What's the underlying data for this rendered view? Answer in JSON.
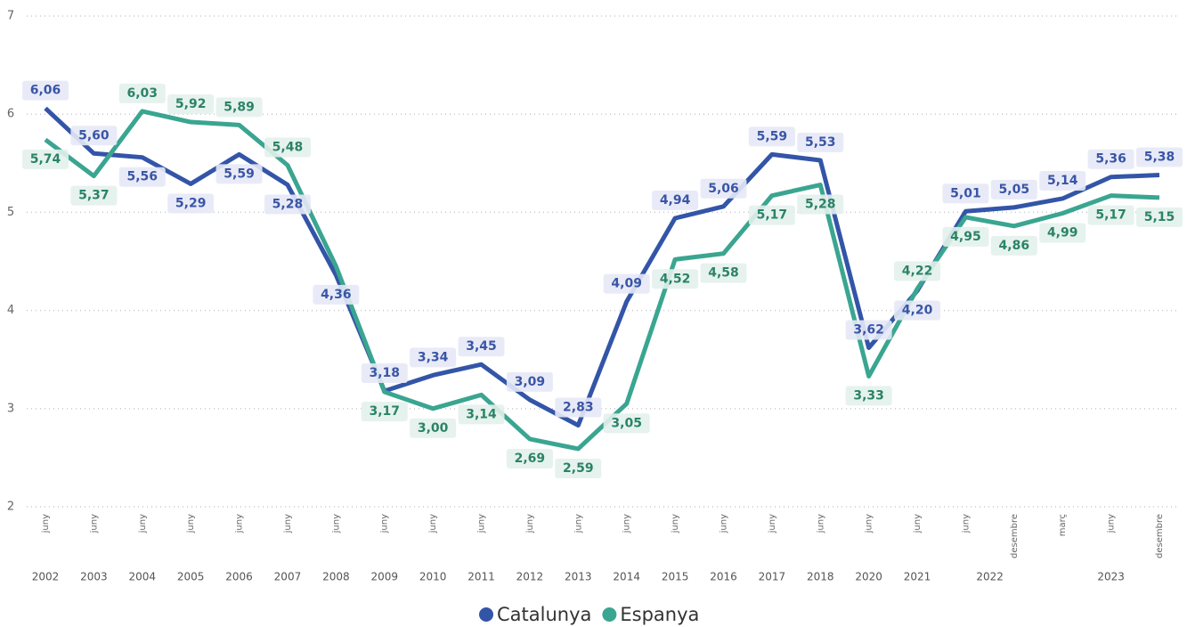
{
  "chart_data": {
    "type": "line",
    "categories": [
      "juny",
      "juny",
      "juny",
      "juny",
      "juny",
      "juny",
      "juny",
      "juny",
      "juny",
      "juny",
      "juny",
      "juny",
      "juny",
      "juny",
      "juny",
      "juny",
      "juny",
      "juny",
      "juny",
      "juny",
      "desembre",
      "març",
      "juny",
      "desembre"
    ],
    "years": [
      "2002",
      "2003",
      "2004",
      "2005",
      "2006",
      "2007",
      "2008",
      "2009",
      "2010",
      "2011",
      "2012",
      "2013",
      "2014",
      "2015",
      "2016",
      "2017",
      "2018",
      "2020",
      "2021",
      "2022",
      null,
      "2023",
      null,
      null
    ],
    "series": [
      {
        "name": "Catalunya",
        "color": "#3355a8",
        "values": [
          6.06,
          5.6,
          5.56,
          5.29,
          5.59,
          5.28,
          4.36,
          3.18,
          3.34,
          3.45,
          3.09,
          2.83,
          4.09,
          4.94,
          5.06,
          5.59,
          5.53,
          3.62,
          4.2,
          5.01,
          5.05,
          5.14,
          5.36,
          5.38
        ],
        "value_labels": [
          "6,06",
          "5,60",
          "5,56",
          "5,29",
          "5,59",
          "5,28",
          "4,36",
          "3,18",
          "3,34",
          "3,45",
          "3,09",
          "2,83",
          "4,09",
          "4,94",
          "5,06",
          "5,59",
          "5,53",
          "3,62",
          "4,20",
          "5,01",
          "5,05",
          "5,14",
          "5,36",
          "5,38"
        ]
      },
      {
        "name": "Espanya",
        "color": "#3aa590",
        "values": [
          5.74,
          5.37,
          6.03,
          5.92,
          5.89,
          5.48,
          4.45,
          3.17,
          3.0,
          3.14,
          2.69,
          2.59,
          3.05,
          4.52,
          4.58,
          5.17,
          5.28,
          3.33,
          4.22,
          4.95,
          4.86,
          4.99,
          5.17,
          5.15
        ],
        "value_labels": [
          "5,74",
          "5,37",
          "6,03",
          "5,92",
          "5,89",
          "5,48",
          null,
          "3,17",
          "3,00",
          "3,14",
          "2,69",
          "2,59",
          "3,05",
          "4,52",
          "4,58",
          "5,17",
          "5,28",
          "3,33",
          "4,22",
          "4,95",
          "4,86",
          "4,99",
          "5,17",
          "5,15"
        ]
      }
    ],
    "ylim": [
      2,
      7
    ],
    "yticks": [
      2,
      3,
      4,
      5,
      6,
      7
    ],
    "grid": true,
    "legend": "bottom"
  }
}
